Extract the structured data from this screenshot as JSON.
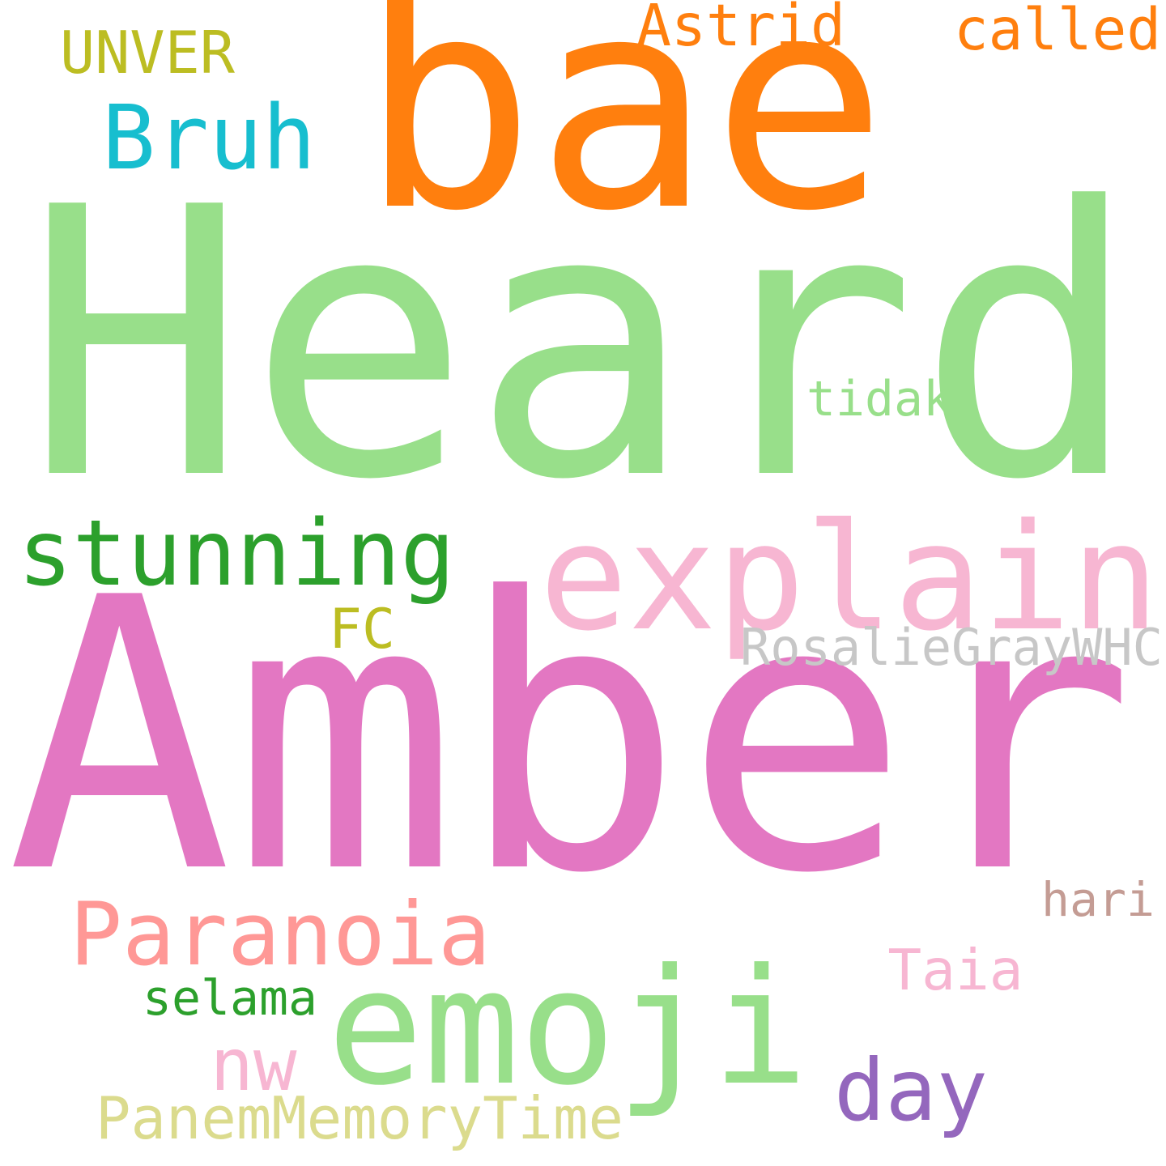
{
  "words": [
    {
      "key": "heard",
      "text": "Heard",
      "color": "#98df8a"
    },
    {
      "key": "amber",
      "text": "Amber",
      "color": "#e377c2"
    },
    {
      "key": "bae",
      "text": "bae",
      "color": "#ff7f0e"
    },
    {
      "key": "explain",
      "text": "explain",
      "color": "#f7b6d2"
    },
    {
      "key": "emoji",
      "text": "emoji",
      "color": "#98df8a"
    },
    {
      "key": "stunning",
      "text": "stunning",
      "color": "#2ca02c"
    },
    {
      "key": "paranoia",
      "text": "Paranoia",
      "color": "#ff9896"
    },
    {
      "key": "bruh",
      "text": "Bruh",
      "color": "#17becf"
    },
    {
      "key": "day",
      "text": "day",
      "color": "#9467bd"
    },
    {
      "key": "nw",
      "text": "nw",
      "color": "#f7b6d2"
    },
    {
      "key": "astrid",
      "text": "Astrid",
      "color": "#ff7f0e"
    },
    {
      "key": "called",
      "text": "called",
      "color": "#ff7f0e"
    },
    {
      "key": "panem",
      "text": "PanemMemoryTime",
      "color": "#dbdb8d"
    },
    {
      "key": "rosalie",
      "text": "RosalieGrayWHC",
      "color": "#c7c7c7"
    },
    {
      "key": "unver",
      "text": "UNVER",
      "color": "#bcbd22"
    },
    {
      "key": "taia",
      "text": "Taia",
      "color": "#f7b6d2"
    },
    {
      "key": "tidak",
      "text": "tidak",
      "color": "#98df8a"
    },
    {
      "key": "hari",
      "text": "hari",
      "color": "#c49c94"
    },
    {
      "key": "fc",
      "text": "FC",
      "color": "#bcbd22"
    },
    {
      "key": "selama",
      "text": "selama",
      "color": "#2ca02c"
    }
  ]
}
